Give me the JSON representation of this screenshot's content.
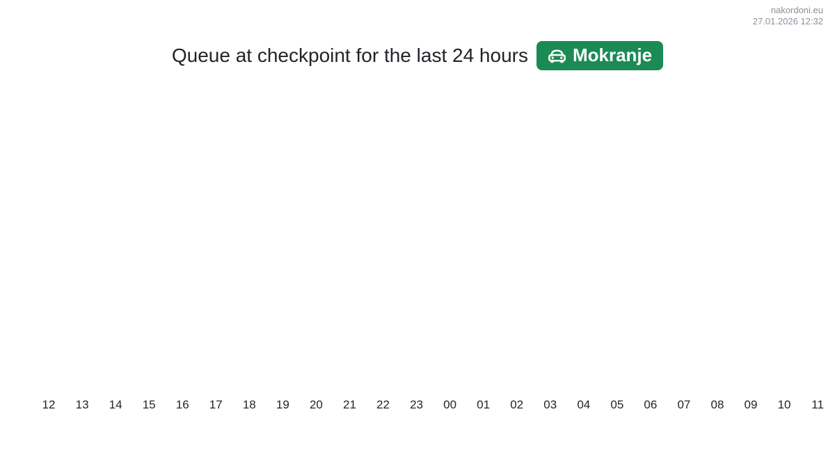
{
  "site": {
    "name": "nakordoni.eu",
    "timestamp": "27.01.2026 12:32"
  },
  "badge": {
    "label": "Mokranje",
    "icon": "car-front-icon",
    "background_color": "#1b8a55",
    "text_color": "#ffffff"
  },
  "chart_data": {
    "type": "bar",
    "title": "Queue at checkpoint for the last 24 hours",
    "categories": [
      "12",
      "13",
      "14",
      "15",
      "16",
      "17",
      "18",
      "19",
      "20",
      "21",
      "22",
      "23",
      "00",
      "01",
      "02",
      "03",
      "04",
      "05",
      "06",
      "07",
      "08",
      "09",
      "10",
      "11"
    ],
    "values": [
      0,
      0,
      0,
      0,
      0,
      0,
      0,
      0,
      0,
      0,
      0,
      0,
      0,
      0,
      0,
      0,
      0,
      0,
      0,
      0,
      0,
      0,
      0,
      0
    ],
    "xlabel": "",
    "ylabel": "",
    "grid": false,
    "y_axis_visible": false,
    "legend_position": "none",
    "bar_color": "#1b8a55",
    "text_color": "#212529"
  }
}
